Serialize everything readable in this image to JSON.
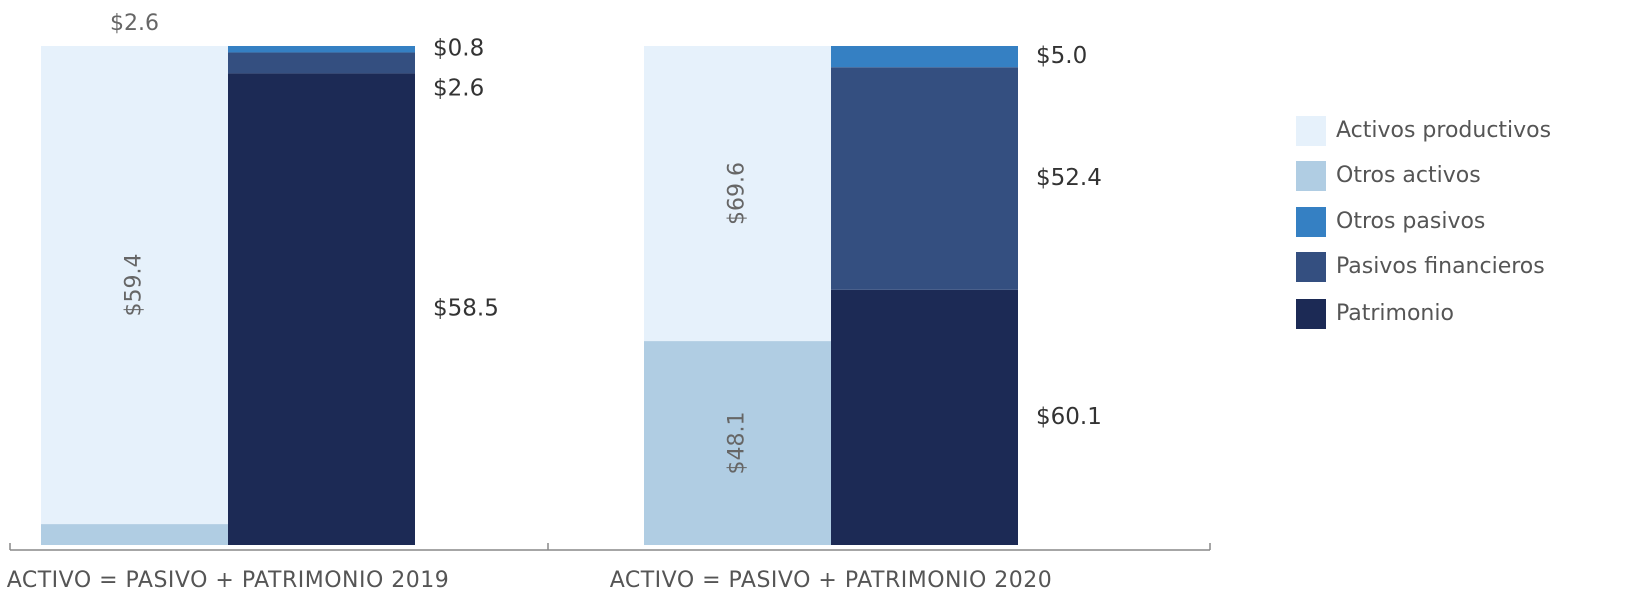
{
  "chart_data": {
    "type": "bar",
    "stacked": "percent",
    "categories": [
      "ACTIVO = PASIVO + PATRIMONIO 2019",
      "ACTIVO = PASIVO + PATRIMONIO 2020"
    ],
    "series": [
      {
        "name": "Activos productivos",
        "color": "#e6f1fb",
        "stack": 0,
        "values": [
          59.4,
          69.6
        ],
        "value_labels": [
          "$59.4",
          "$69.6"
        ]
      },
      {
        "name": "Otros activos",
        "color": "#b0cde3",
        "stack": 0,
        "values": [
          2.6,
          48.1
        ],
        "value_labels": [
          "$2.6",
          "$48.1"
        ]
      },
      {
        "name": "Otros pasivos",
        "color": "#3580c3",
        "stack": 1,
        "values": [
          0.8,
          5.0
        ],
        "value_labels": [
          "$0.8",
          "$5.0"
        ]
      },
      {
        "name": "Pasivos financieros",
        "color": "#344f80",
        "stack": 1,
        "values": [
          2.6,
          52.4
        ],
        "value_labels": [
          "$2.6",
          "$52.4"
        ]
      },
      {
        "name": "Patrimonio",
        "color": "#1c2a55",
        "stack": 1,
        "values": [
          58.5,
          60.1
        ],
        "value_labels": [
          "$58.5",
          "$60.1"
        ]
      }
    ]
  }
}
